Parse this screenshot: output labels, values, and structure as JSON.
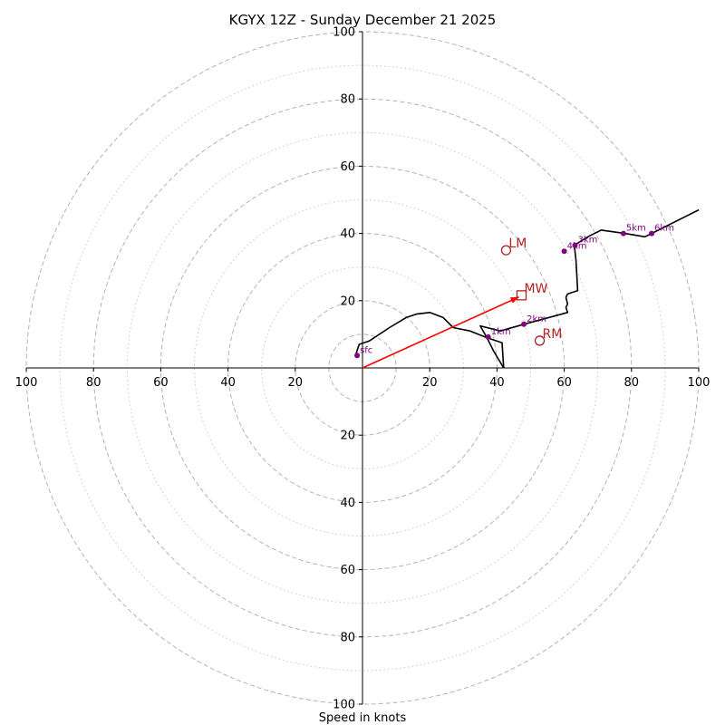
{
  "chart_data": {
    "type": "hodograph",
    "title": "KGYX 12Z - Sunday December 21 2025",
    "xlabel": "Speed in knots",
    "axis_range": [
      -100,
      100
    ],
    "ring_radii_dashed": [
      10,
      20,
      40,
      60,
      80,
      100
    ],
    "ring_radii_dotted": [
      30,
      50,
      70,
      90
    ],
    "ticks": {
      "x": [
        {
          "v": -100,
          "label": "100"
        },
        {
          "v": -80,
          "label": "80"
        },
        {
          "v": -60,
          "label": "60"
        },
        {
          "v": -40,
          "label": "40"
        },
        {
          "v": -20,
          "label": "20"
        },
        {
          "v": 20,
          "label": "20"
        },
        {
          "v": 40,
          "label": "40"
        },
        {
          "v": 60,
          "label": "60"
        },
        {
          "v": 80,
          "label": "80"
        },
        {
          "v": 100,
          "label": "100"
        }
      ],
      "y": [
        {
          "v": 100,
          "label": "100"
        },
        {
          "v": 80,
          "label": "80"
        },
        {
          "v": 60,
          "label": "60"
        },
        {
          "v": 40,
          "label": "40"
        },
        {
          "v": 20,
          "label": "20"
        },
        {
          "v": -20,
          "label": "20"
        },
        {
          "v": -40,
          "label": "40"
        },
        {
          "v": -60,
          "label": "60"
        },
        {
          "v": -80,
          "label": "80"
        },
        {
          "v": -100,
          "label": "100"
        }
      ]
    },
    "profile_color": "#000000",
    "profile_points": [
      [
        42,
        0
      ],
      [
        41.5,
        7.5
      ],
      [
        37,
        9
      ],
      [
        35,
        12.5
      ],
      [
        41,
        11
      ],
      [
        48,
        13
      ],
      [
        61,
        16.5
      ],
      [
        60.5,
        18
      ],
      [
        61,
        19
      ],
      [
        60.5,
        21
      ],
      [
        61,
        22
      ],
      [
        64,
        23
      ],
      [
        63.5,
        32
      ],
      [
        63,
        36.5
      ],
      [
        67,
        39
      ],
      [
        71,
        41
      ],
      [
        78,
        40
      ],
      [
        84,
        39
      ],
      [
        86,
        40
      ],
      [
        100,
        47
      ]
    ],
    "lower_path": [
      [
        42,
        0
      ],
      [
        39,
        5
      ],
      [
        37,
        9
      ],
      [
        32,
        11
      ],
      [
        27,
        12
      ],
      [
        24,
        15
      ],
      [
        20,
        16.5
      ],
      [
        16,
        16
      ],
      [
        13,
        15
      ],
      [
        8,
        12
      ],
      [
        2,
        8
      ],
      [
        -1,
        7
      ],
      [
        -2,
        4
      ]
    ],
    "height_markers": [
      {
        "label": "sfc",
        "u": -1.6,
        "v": 3.7
      },
      {
        "label": "1km",
        "u": 37.4,
        "v": 9.2
      },
      {
        "label": "2km",
        "u": 48.0,
        "v": 13.0
      },
      {
        "label": "3km",
        "u": 63.2,
        "v": 36.5
      },
      {
        "label": "4km",
        "u": 60.0,
        "v": 34.7
      },
      {
        "label": "5km",
        "u": 77.6,
        "v": 40.0
      },
      {
        "label": "6km",
        "u": 86.0,
        "v": 40.0
      }
    ],
    "marker_color": "#800080",
    "storm_motion": [
      {
        "label": "LM",
        "u": 42.7,
        "v": 35.0,
        "shape": "circle"
      },
      {
        "label": "MW",
        "u": 47.3,
        "v": 21.6,
        "shape": "square"
      },
      {
        "label": "RM",
        "u": 52.7,
        "v": 8.1,
        "shape": "circle"
      }
    ],
    "storm_color": "#b22222",
    "shear_vector": {
      "from": [
        0,
        0
      ],
      "to": [
        46.5,
        21.1
      ],
      "color": "#ff0000"
    }
  }
}
